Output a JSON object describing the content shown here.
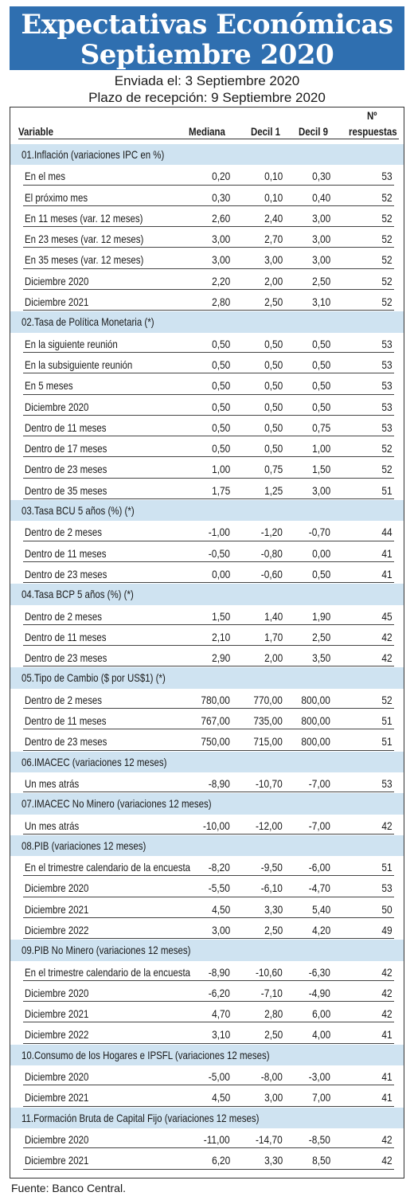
{
  "banner": {
    "line1": "Expectativas Económicas",
    "line2": "Septiembre 2020"
  },
  "subtitle": {
    "sent": "Enviada el: 3 Septiembre 2020",
    "deadline": "Plazo de recepción: 9 Septiembre 2020"
  },
  "headers": {
    "variable": "Variable",
    "mediana": "Mediana",
    "decil1": "Decil 1",
    "decil9": "Decil 9",
    "n_line1": "Nº",
    "n_line2": "respuestas"
  },
  "rows": [
    {
      "type": "section",
      "label": "01.Inflación (variaciones IPC en %)"
    },
    {
      "type": "data",
      "label": "En el mes",
      "mediana": "0,20",
      "decil1": "0,10",
      "decil9": "0,30",
      "n": "53"
    },
    {
      "type": "data",
      "label": "El próximo mes",
      "mediana": "0,30",
      "decil1": "0,10",
      "decil9": "0,40",
      "n": "52"
    },
    {
      "type": "data",
      "label": "En 11 meses (var. 12 meses)",
      "mediana": "2,60",
      "decil1": "2,40",
      "decil9": "3,00",
      "n": "52"
    },
    {
      "type": "data",
      "label": "En 23 meses (var. 12 meses)",
      "mediana": "3,00",
      "decil1": "2,70",
      "decil9": "3,00",
      "n": "52"
    },
    {
      "type": "data",
      "label": "En 35 meses (var. 12 meses)",
      "mediana": "3,00",
      "decil1": "3,00",
      "decil9": "3,00",
      "n": "52"
    },
    {
      "type": "data",
      "label": "Diciembre 2020",
      "mediana": "2,20",
      "decil1": "2,00",
      "decil9": "2,50",
      "n": "52"
    },
    {
      "type": "data",
      "label": "Diciembre 2021",
      "mediana": "2,80",
      "decil1": "2,50",
      "decil9": "3,10",
      "n": "52"
    },
    {
      "type": "section",
      "label": "02.Tasa de Política Monetaria (*)"
    },
    {
      "type": "data",
      "label": "En la siguiente reunión",
      "mediana": "0,50",
      "decil1": "0,50",
      "decil9": "0,50",
      "n": "53"
    },
    {
      "type": "data",
      "label": "En la subsiguiente reunión",
      "mediana": "0,50",
      "decil1": "0,50",
      "decil9": "0,50",
      "n": "53"
    },
    {
      "type": "data",
      "label": "En 5 meses",
      "mediana": "0,50",
      "decil1": "0,50",
      "decil9": "0,50",
      "n": "53"
    },
    {
      "type": "data",
      "label": "Diciembre 2020",
      "mediana": "0,50",
      "decil1": "0,50",
      "decil9": "0,50",
      "n": "53"
    },
    {
      "type": "data",
      "label": "Dentro de 11 meses",
      "mediana": "0,50",
      "decil1": "0,50",
      "decil9": "0,75",
      "n": "53"
    },
    {
      "type": "data",
      "label": "Dentro de 17 meses",
      "mediana": "0,50",
      "decil1": "0,50",
      "decil9": "1,00",
      "n": "52"
    },
    {
      "type": "data",
      "label": "Dentro de 23 meses",
      "mediana": "1,00",
      "decil1": "0,75",
      "decil9": "1,50",
      "n": "52"
    },
    {
      "type": "data",
      "label": "Dentro de 35 meses",
      "mediana": "1,75",
      "decil1": "1,25",
      "decil9": "3,00",
      "n": "51"
    },
    {
      "type": "section",
      "label": "03.Tasa BCU 5 años (%) (*)"
    },
    {
      "type": "data",
      "label": "Dentro de 2 meses",
      "mediana": "-1,00",
      "decil1": "-1,20",
      "decil9": "-0,70",
      "n": "44"
    },
    {
      "type": "data",
      "label": "Dentro de 11 meses",
      "mediana": "-0,50",
      "decil1": "-0,80",
      "decil9": "0,00",
      "n": "41"
    },
    {
      "type": "data",
      "label": "Dentro de 23 meses",
      "mediana": "0,00",
      "decil1": "-0,60",
      "decil9": "0,50",
      "n": "41"
    },
    {
      "type": "section",
      "label": "04.Tasa BCP 5 años (%) (*)"
    },
    {
      "type": "data",
      "label": "Dentro de 2 meses",
      "mediana": "1,50",
      "decil1": "1,40",
      "decil9": "1,90",
      "n": "45"
    },
    {
      "type": "data",
      "label": "Dentro de 11 meses",
      "mediana": "2,10",
      "decil1": "1,70",
      "decil9": "2,50",
      "n": "42"
    },
    {
      "type": "data",
      "label": "Dentro de 23 meses",
      "mediana": "2,90",
      "decil1": "2,00",
      "decil9": "3,50",
      "n": "42"
    },
    {
      "type": "section",
      "label": "05.Tipo de Cambio ($ por US$1) (*)"
    },
    {
      "type": "data",
      "label": "Dentro de 2 meses",
      "mediana": "780,00",
      "decil1": "770,00",
      "decil9": "800,00",
      "n": "52"
    },
    {
      "type": "data",
      "label": "Dentro de 11 meses",
      "mediana": "767,00",
      "decil1": "735,00",
      "decil9": "800,00",
      "n": "51"
    },
    {
      "type": "data",
      "label": "Dentro de 23 meses",
      "mediana": "750,00",
      "decil1": "715,00",
      "decil9": "800,00",
      "n": "51"
    },
    {
      "type": "section",
      "label": "06.IMACEC (variaciones 12 meses)"
    },
    {
      "type": "data",
      "label": "Un mes atrás",
      "mediana": "-8,90",
      "decil1": "-10,70",
      "decil9": "-7,00",
      "n": "53"
    },
    {
      "type": "section",
      "label": "07.IMACEC No Minero (variaciones 12 meses)"
    },
    {
      "type": "data",
      "label": "Un mes atrás",
      "mediana": "-10,00",
      "decil1": "-12,00",
      "decil9": "-7,00",
      "n": "42"
    },
    {
      "type": "section",
      "label": "08.PIB (variaciones 12 meses)"
    },
    {
      "type": "data",
      "label": "En el trimestre calendario de la encuesta",
      "mediana": "-8,20",
      "decil1": "-9,50",
      "decil9": "-6,00",
      "n": "51"
    },
    {
      "type": "data",
      "label": "Diciembre 2020",
      "mediana": "-5,50",
      "decil1": "-6,10",
      "decil9": "-4,70",
      "n": "53"
    },
    {
      "type": "data",
      "label": "Diciembre 2021",
      "mediana": "4,50",
      "decil1": "3,30",
      "decil9": "5,40",
      "n": "50"
    },
    {
      "type": "data",
      "label": "Diciembre 2022",
      "mediana": "3,00",
      "decil1": "2,50",
      "decil9": "4,20",
      "n": "49"
    },
    {
      "type": "section",
      "label": "09.PIB No Minero (variaciones 12 meses)"
    },
    {
      "type": "data",
      "label": "En el trimestre calendario de la encuesta",
      "mediana": "-8,90",
      "decil1": "-10,60",
      "decil9": "-6,30",
      "n": "42"
    },
    {
      "type": "data",
      "label": "Diciembre 2020",
      "mediana": "-6,20",
      "decil1": "-7,10",
      "decil9": "-4,90",
      "n": "42"
    },
    {
      "type": "data",
      "label": "Diciembre 2021",
      "mediana": "4,70",
      "decil1": "2,80",
      "decil9": "6,00",
      "n": "42"
    },
    {
      "type": "data",
      "label": "Diciembre 2022",
      "mediana": "3,10",
      "decil1": "2,50",
      "decil9": "4,00",
      "n": "41"
    },
    {
      "type": "section",
      "label": "10.Consumo de los Hogares e IPSFL (variaciones 12 meses)"
    },
    {
      "type": "data",
      "label": "Diciembre 2020",
      "mediana": "-5,00",
      "decil1": "-8,00",
      "decil9": "-3,00",
      "n": "41"
    },
    {
      "type": "data",
      "label": "Diciembre 2021",
      "mediana": "4,50",
      "decil1": "3,00",
      "decil9": "7,00",
      "n": "41"
    },
    {
      "type": "section",
      "label": "11.Formación Bruta de Capital Fijo (variaciones 12 meses)"
    },
    {
      "type": "data",
      "label": "Diciembre 2020",
      "mediana": "-11,00",
      "decil1": "-14,70",
      "decil9": "-8,50",
      "n": "42"
    },
    {
      "type": "data",
      "label": "Diciembre 2021",
      "mediana": "6,20",
      "decil1": "3,30",
      "decil9": "8,50",
      "n": "42"
    }
  ],
  "source": "Fuente: Banco Central.",
  "colors": {
    "banner": "#2f6fb0",
    "section_band": "#cfe3f1"
  }
}
